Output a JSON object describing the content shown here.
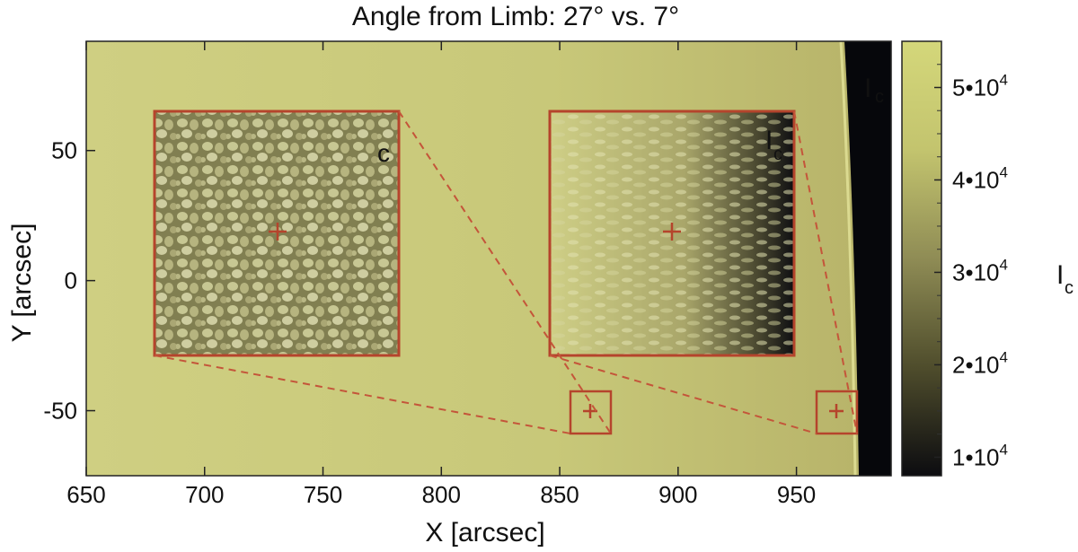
{
  "title": "Angle from Limb: 27° vs. 7°",
  "x_axis": {
    "label": "X [arcsec]",
    "range": [
      650,
      990
    ],
    "ticks": [
      650,
      700,
      750,
      800,
      850,
      900,
      950
    ]
  },
  "y_axis": {
    "label": "Y [arcsec]",
    "range": [
      -75,
      92
    ],
    "ticks": [
      50,
      0,
      -50
    ]
  },
  "colorbar": {
    "label": "I",
    "label_sub": "c",
    "ticks": [
      {
        "value": 50000,
        "mantissa": "5•10",
        "exponent": "4"
      },
      {
        "value": 40000,
        "mantissa": "4•10",
        "exponent": "4"
      },
      {
        "value": 30000,
        "mantissa": "3•10",
        "exponent": "4"
      },
      {
        "value": 20000,
        "mantissa": "2•10",
        "exponent": "4"
      },
      {
        "value": 10000,
        "mantissa": "1•10",
        "exponent": "4"
      }
    ],
    "range": [
      8000,
      55000
    ],
    "colors": {
      "high": "#d4d77a",
      "mid": "#7b7a46",
      "low": "#0c0c10"
    }
  },
  "limb_label": {
    "main": "I",
    "sub": "c"
  },
  "insets": [
    {
      "id": "inset-27",
      "label_main": "I",
      "label_sub": "c",
      "target_center": [
        848,
        -50
      ]
    },
    {
      "id": "inset-7",
      "label_main": "I",
      "label_sub": "c",
      "target_center": [
        945,
        -50
      ]
    }
  ],
  "colors": {
    "disk": "#c9c97a",
    "space": "#06070b",
    "marker": "#b5442c"
  }
}
